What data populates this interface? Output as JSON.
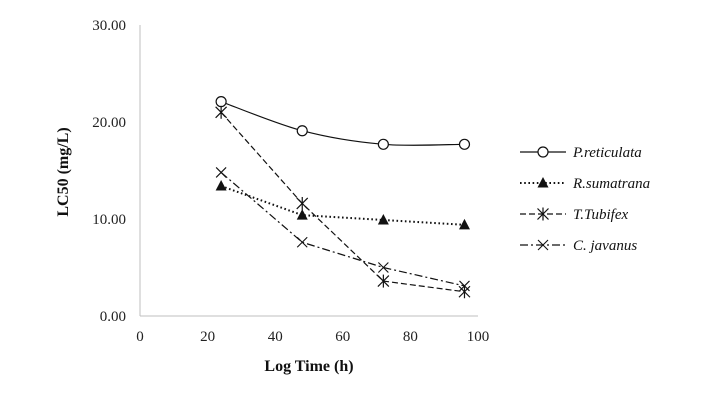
{
  "chart_data": {
    "type": "line",
    "title": "",
    "xlabel": "Log Time (h)",
    "ylabel": "LC50 (mg/L)",
    "xlim": [
      0,
      100
    ],
    "ylim": [
      0,
      30
    ],
    "x_ticks": [
      "0",
      "20",
      "40",
      "60",
      "80",
      "100"
    ],
    "y_ticks": [
      "0.00",
      "10.00",
      "20.00",
      "30.00"
    ],
    "grid": false,
    "legend_position": "right",
    "series": [
      {
        "name": "P.reticulata",
        "marker": "circle-open",
        "dash": "solid",
        "smooth": true,
        "x": [
          24,
          48,
          72,
          96
        ],
        "y": [
          22.1,
          19.1,
          17.7,
          17.7
        ]
      },
      {
        "name": "R.sumatrana",
        "marker": "triangle-filled",
        "dash": "dotted",
        "smooth": false,
        "x": [
          24,
          48,
          72,
          96
        ],
        "y": [
          13.4,
          10.4,
          9.9,
          9.4
        ]
      },
      {
        "name": "T.Tubifex",
        "marker": "asterisk",
        "dash": "dashed",
        "smooth": false,
        "x": [
          24,
          48,
          72,
          96
        ],
        "y": [
          21.0,
          11.6,
          3.6,
          2.5
        ]
      },
      {
        "name": "C. javanus",
        "marker": "x",
        "dash": "dashdot",
        "smooth": false,
        "x": [
          24,
          48,
          72,
          96
        ],
        "y": [
          14.8,
          7.6,
          5.0,
          3.1
        ]
      }
    ]
  }
}
